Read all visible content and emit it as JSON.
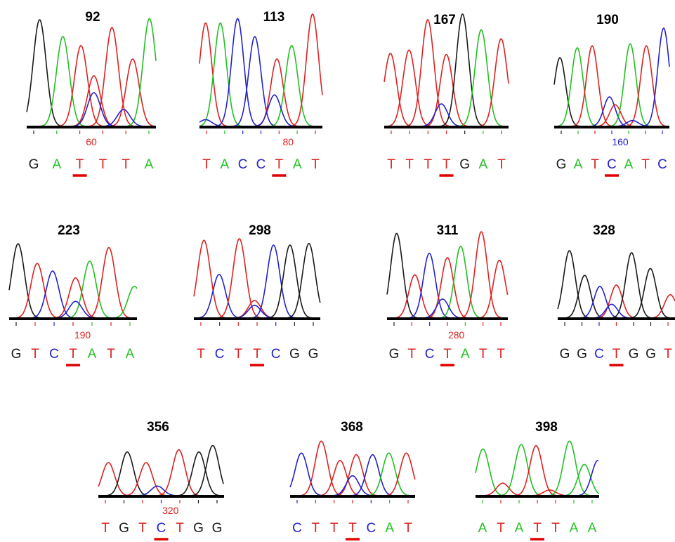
{
  "colors": {
    "A": "#22c022",
    "C": "#2222cc",
    "G": "#1a1a1a",
    "T": "#dd2222",
    "marker": "#e00000",
    "baseline": "#000000"
  },
  "panels": [
    {
      "title": "92",
      "bases": [
        "G",
        "A",
        "T",
        "T",
        "T",
        "A"
      ],
      "marked_index": 2,
      "position_label": "60",
      "position_color": "#dd2222",
      "peaks": [
        [
          0.1,
          "G",
          0.95
        ],
        [
          0.28,
          "A",
          0.8
        ],
        [
          0.42,
          "T",
          0.72
        ],
        [
          0.52,
          "T",
          0.45
        ],
        [
          0.66,
          "T",
          0.88
        ],
        [
          0.82,
          "T",
          0.6
        ],
        [
          0.95,
          "A",
          0.96
        ],
        [
          0.52,
          "C",
          0.3
        ],
        [
          0.75,
          "C",
          0.15
        ]
      ]
    },
    {
      "title": "113",
      "bases": [
        "T",
        "A",
        "C",
        "C",
        "T",
        "A",
        "T"
      ],
      "marked_index": 4,
      "position_label": "80",
      "position_color": "#dd2222",
      "peaks": [
        [
          0.05,
          "T",
          0.92
        ],
        [
          0.17,
          "A",
          0.92
        ],
        [
          0.31,
          "C",
          0.96
        ],
        [
          0.45,
          "C",
          0.8
        ],
        [
          0.63,
          "T",
          0.6
        ],
        [
          0.75,
          "A",
          0.72
        ],
        [
          0.92,
          "T",
          1.0
        ],
        [
          0.61,
          "C",
          0.28
        ],
        [
          0.05,
          "C",
          0.06
        ]
      ]
    },
    {
      "title": "167",
      "bases": [
        "T",
        "T",
        "T",
        "T",
        "G",
        "A",
        "T"
      ],
      "marked_index": 3,
      "position_label": "",
      "position_color": "#dd2222",
      "peaks": [
        [
          0.05,
          "T",
          0.65
        ],
        [
          0.2,
          "T",
          0.68
        ],
        [
          0.35,
          "T",
          0.95
        ],
        [
          0.5,
          "T",
          0.64
        ],
        [
          0.63,
          "G",
          1.0
        ],
        [
          0.78,
          "A",
          0.86
        ],
        [
          0.94,
          "T",
          0.78
        ],
        [
          0.46,
          "C",
          0.2
        ]
      ]
    },
    {
      "title": "190",
      "bases": [
        "G",
        "A",
        "T",
        "C",
        "A",
        "T",
        "C"
      ],
      "marked_index": 3,
      "position_label": "160",
      "position_color": "#2222cc",
      "peaks": [
        [
          0.05,
          "G",
          0.7
        ],
        [
          0.2,
          "A",
          0.8
        ],
        [
          0.33,
          "T",
          0.82
        ],
        [
          0.48,
          "C",
          0.3
        ],
        [
          0.53,
          "T",
          0.22
        ],
        [
          0.66,
          "A",
          0.84
        ],
        [
          0.8,
          "T",
          0.82
        ],
        [
          0.95,
          "C",
          1.0
        ],
        [
          0.68,
          "C",
          0.06
        ]
      ]
    },
    {
      "title": "223",
      "bases": [
        "G",
        "T",
        "C",
        "T",
        "A",
        "T",
        "A"
      ],
      "marked_index": 3,
      "position_label": "190",
      "position_color": "#dd2222",
      "peaks": [
        [
          0.07,
          "G",
          0.98
        ],
        [
          0.22,
          "T",
          0.72
        ],
        [
          0.34,
          "C",
          0.62
        ],
        [
          0.52,
          "T",
          0.53
        ],
        [
          0.63,
          "A",
          0.75
        ],
        [
          0.78,
          "T",
          0.93
        ],
        [
          0.98,
          "A",
          0.42
        ],
        [
          0.52,
          "C",
          0.22
        ]
      ]
    },
    {
      "title": "298",
      "bases": [
        "T",
        "C",
        "T",
        "T",
        "C",
        "G",
        "G"
      ],
      "marked_index": 3,
      "position_label": "",
      "position_color": "#dd2222",
      "peaks": [
        [
          0.08,
          "T",
          0.98
        ],
        [
          0.2,
          "C",
          0.55
        ],
        [
          0.36,
          "T",
          1.0
        ],
        [
          0.48,
          "T",
          0.22
        ],
        [
          0.63,
          "C",
          0.92
        ],
        [
          0.76,
          "G",
          0.92
        ],
        [
          0.91,
          "G",
          0.94
        ],
        [
          0.48,
          "C",
          0.16
        ]
      ]
    },
    {
      "title": "311",
      "bases": [
        "G",
        "T",
        "C",
        "T",
        "A",
        "T",
        "T"
      ],
      "marked_index": 3,
      "position_label": "280",
      "position_color": "#dd2222",
      "peaks": [
        [
          0.08,
          "G",
          0.98
        ],
        [
          0.23,
          "T",
          0.5
        ],
        [
          0.35,
          "C",
          0.75
        ],
        [
          0.5,
          "T",
          0.7
        ],
        [
          0.61,
          "A",
          0.83
        ],
        [
          0.78,
          "T",
          1.0
        ],
        [
          0.93,
          "T",
          0.67
        ],
        [
          0.46,
          "C",
          0.22
        ]
      ]
    },
    {
      "title": "328",
      "bases": [
        "G",
        "G",
        "C",
        "T",
        "G",
        "G",
        "T"
      ],
      "marked_index": 3,
      "position_label": "",
      "position_color": "#dd2222",
      "peaks": [
        [
          0.1,
          "G",
          0.98
        ],
        [
          0.23,
          "G",
          0.62
        ],
        [
          0.36,
          "C",
          0.46
        ],
        [
          0.5,
          "T",
          0.48
        ],
        [
          0.63,
          "G",
          0.95
        ],
        [
          0.79,
          "G",
          0.72
        ],
        [
          0.96,
          "T",
          0.34
        ],
        [
          0.46,
          "C",
          0.2
        ]
      ]
    },
    {
      "title": "356",
      "bases": [
        "T",
        "G",
        "T",
        "C",
        "T",
        "G",
        "G"
      ],
      "marked_index": 3,
      "position_label": "320",
      "position_color": "#dd2222",
      "peaks": [
        [
          0.08,
          "T",
          0.62
        ],
        [
          0.23,
          "G",
          0.82
        ],
        [
          0.38,
          "T",
          0.62
        ],
        [
          0.47,
          "C",
          0.18
        ],
        [
          0.64,
          "T",
          0.86
        ],
        [
          0.8,
          "G",
          0.82
        ],
        [
          0.91,
          "G",
          0.94
        ]
      ]
    },
    {
      "title": "368",
      "bases": [
        "C",
        "T",
        "T",
        "T",
        "C",
        "A",
        "T"
      ],
      "marked_index": 3,
      "position_label": "",
      "position_color": "#dd2222",
      "peaks": [
        [
          0.09,
          "C",
          0.75
        ],
        [
          0.25,
          "T",
          0.96
        ],
        [
          0.4,
          "T",
          0.62
        ],
        [
          0.53,
          "T",
          0.72
        ],
        [
          0.5,
          "C",
          0.35
        ],
        [
          0.66,
          "C",
          0.72
        ],
        [
          0.79,
          "A",
          0.75
        ],
        [
          0.93,
          "T",
          0.75
        ]
      ]
    },
    {
      "title": "398",
      "bases": [
        "A",
        "T",
        "A",
        "T",
        "T",
        "A",
        "A"
      ],
      "marked_index": 3,
      "position_label": "",
      "position_color": "#dd2222",
      "peaks": [
        [
          0.06,
          "A",
          0.82
        ],
        [
          0.22,
          "T",
          0.22
        ],
        [
          0.37,
          "A",
          0.9
        ],
        [
          0.49,
          "T",
          0.88
        ],
        [
          0.6,
          "T",
          0.1
        ],
        [
          0.76,
          "A",
          0.96
        ],
        [
          0.88,
          "A",
          0.55
        ],
        [
          0.99,
          "C",
          0.62
        ]
      ]
    }
  ]
}
